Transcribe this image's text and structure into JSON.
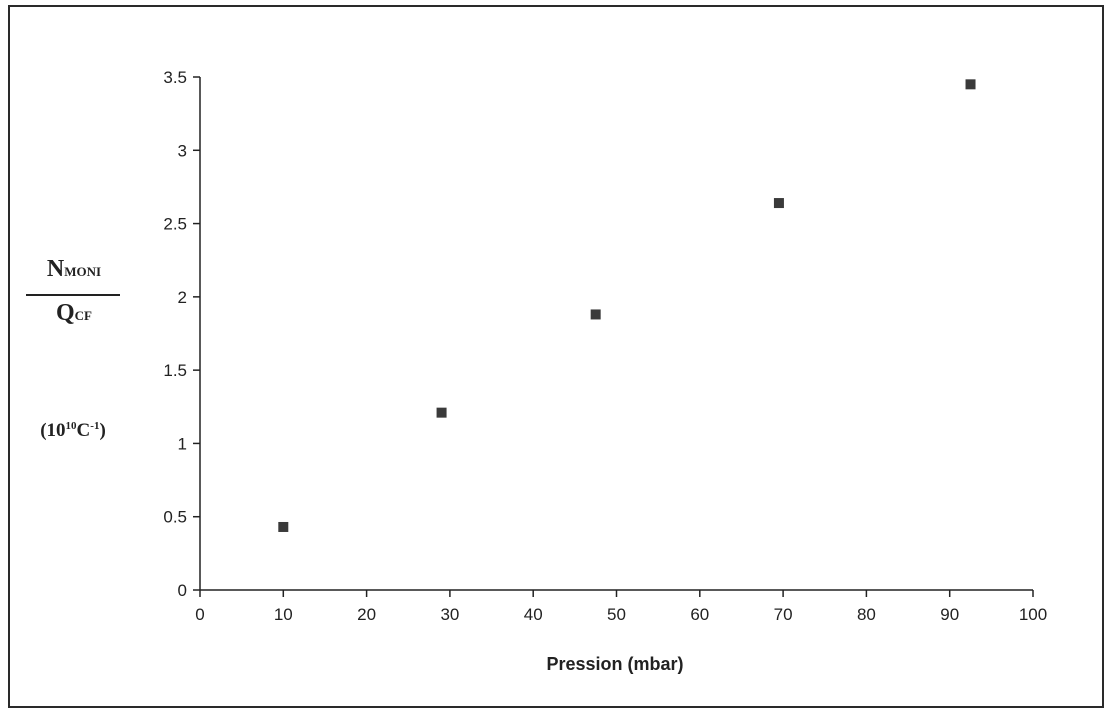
{
  "chart_data": {
    "type": "scatter",
    "title": "",
    "xlabel": "Pression (mbar)",
    "ylabel": {
      "numerator_main": "N",
      "numerator_sub": "MONI",
      "denominator_main": "Q",
      "denominator_sub": "CF",
      "unit_prefix": "(10",
      "unit_exp1": "10",
      "unit_mid": "C",
      "unit_exp2": "-1",
      "unit_suffix": ")"
    },
    "xlim": [
      0,
      100
    ],
    "ylim": [
      0,
      3.5
    ],
    "x_ticks": [
      "0",
      "10",
      "20",
      "30",
      "40",
      "50",
      "60",
      "70",
      "80",
      "90",
      "100"
    ],
    "y_ticks": [
      "0",
      "0.5",
      "1",
      "1.5",
      "2",
      "2.5",
      "3",
      "3.5"
    ],
    "grid": false,
    "marker": "square",
    "marker_color": "#3a3a3a",
    "points": [
      {
        "x": 10,
        "y": 0.43
      },
      {
        "x": 29,
        "y": 1.21
      },
      {
        "x": 47.5,
        "y": 1.88
      },
      {
        "x": 69.5,
        "y": 2.64
      },
      {
        "x": 92.5,
        "y": 3.45
      }
    ]
  }
}
